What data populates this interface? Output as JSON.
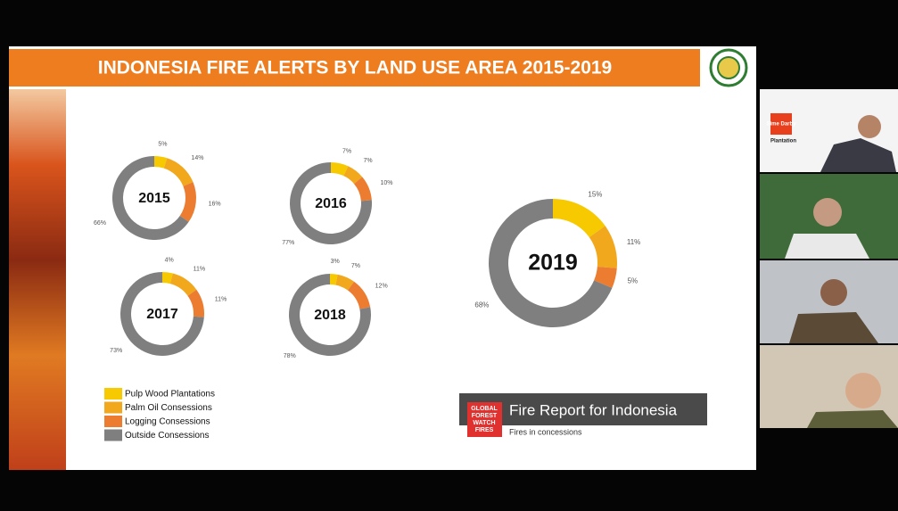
{
  "slide": {
    "title": "INDONESIA FIRE ALERTS BY LAND USE AREA 2015-2019",
    "banner": {
      "logo": [
        "GLOBAL",
        "FOREST",
        "WATCH",
        "FIRES"
      ],
      "title": "Fire Report for Indonesia",
      "subtitle": "Fires in concessions"
    }
  },
  "legend": [
    {
      "name": "Pulp Wood Plantations",
      "color": "#f7c900"
    },
    {
      "name": "Palm Oil Consessions",
      "color": "#f2a81d"
    },
    {
      "name": "Logging Consessions",
      "color": "#ec7c30"
    },
    {
      "name": "Outside Consessions",
      "color": "#7f7f7f"
    }
  ],
  "chart_data": [
    {
      "type": "pie",
      "title": "2015",
      "values": [
        5,
        14,
        16,
        66
      ],
      "value_labels": [
        "5%",
        "14%",
        "16%",
        "66%"
      ]
    },
    {
      "type": "pie",
      "title": "2016",
      "values": [
        7,
        7,
        10,
        77
      ],
      "value_labels": [
        "7%",
        "7%",
        "10%",
        "77%"
      ]
    },
    {
      "type": "pie",
      "title": "2017",
      "values": [
        4,
        11,
        11,
        73
      ],
      "value_labels": [
        "4%",
        "11%",
        "11%",
        "73%"
      ]
    },
    {
      "type": "pie",
      "title": "2018",
      "values": [
        3,
        7,
        12,
        78
      ],
      "value_labels": [
        "3%",
        "7%",
        "12%",
        "78%"
      ]
    },
    {
      "type": "pie",
      "title": "2019",
      "values": [
        15,
        11,
        5,
        68
      ],
      "value_labels": [
        "15%",
        "11%",
        "5%",
        "68%"
      ]
    }
  ],
  "tiles": {
    "brand": "Sime Darby",
    "brand_sub": "Plantation"
  }
}
